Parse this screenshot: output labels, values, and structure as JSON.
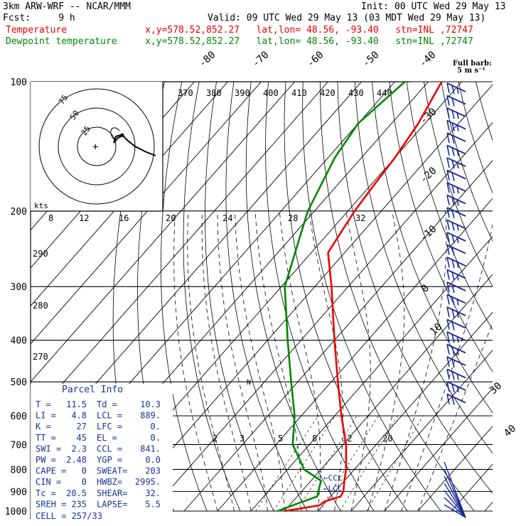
{
  "header": {
    "model": "3km ARW-WRF -- NCAR/MMM",
    "init": "Init: 00 UTC Wed 29 May 13",
    "fcst": "Fcst:     9 h",
    "valid": "Valid: 09 UTC Wed 29 May 13 (03 MDT Wed 29 May 13)",
    "temp_label": "Temperature",
    "dew_label": "Dewpoint temperature",
    "loc": "x,y=578.52,852.27   lat,lon= 48.56, -93.40   stn=INL ,72747",
    "barb_title": "Full barb:",
    "barb_unit": "5 m s⁻¹",
    "hodo_units": "kts"
  },
  "colors": {
    "temperature": "#ee0000",
    "dewpoint": "#008800",
    "parcel": "#1a3399",
    "barbs": "#1a2a99"
  },
  "chart_data": {
    "type": "line",
    "title": "",
    "y_scale": "log-pressure",
    "ylim": [
      1000,
      100
    ],
    "pressure_levels": [
      "100",
      "200",
      "300",
      "400",
      "500",
      "600",
      "700",
      "800",
      "900",
      "1000"
    ],
    "isotherm_labels": [
      "-80",
      "-70",
      "-60",
      "-50",
      "-40",
      "-30",
      "-20",
      "-10",
      "0",
      "10",
      "30",
      "40"
    ],
    "theta_e_labels": [
      "370",
      "380",
      "390",
      "400",
      "410",
      "420",
      "430",
      "440"
    ],
    "mixing_ratio_labels_upper": [
      "8",
      "12",
      "16",
      "20",
      "24",
      "28",
      "32"
    ],
    "mixing_ratio_labels_lower": [
      "2",
      "3",
      "5",
      "8",
      "12",
      "20"
    ],
    "dry_adiabat_labels": [
      "290",
      "280",
      "270"
    ],
    "series": [
      {
        "name": "Temperature",
        "points": [
          [
            1000,
            0
          ],
          [
            970,
            9
          ],
          [
            950,
            9.5
          ],
          [
            925,
            13
          ],
          [
            900,
            12.5
          ],
          [
            850,
            10
          ],
          [
            800,
            7.5
          ],
          [
            700,
            1
          ],
          [
            600,
            -8
          ],
          [
            500,
            -18
          ],
          [
            400,
            -30
          ],
          [
            300,
            -45
          ],
          [
            250,
            -55
          ],
          [
            200,
            -58
          ],
          [
            175,
            -59
          ],
          [
            150,
            -60
          ],
          [
            125,
            -62
          ],
          [
            100,
            -66
          ]
        ]
      },
      {
        "name": "Dewpoint temperature",
        "points": [
          [
            1000,
            -2
          ],
          [
            960,
            2
          ],
          [
            925,
            6
          ],
          [
            900,
            5
          ],
          [
            850,
            3
          ],
          [
            800,
            -5
          ],
          [
            700,
            -15
          ],
          [
            600,
            -22
          ],
          [
            500,
            -32
          ],
          [
            400,
            -44
          ],
          [
            300,
            -59
          ],
          [
            200,
            -72
          ],
          [
            150,
            -78
          ],
          [
            125,
            -80
          ],
          [
            100,
            -77
          ]
        ]
      }
    ],
    "parcel_labels": [
      "LFC",
      "CCL",
      "LCL"
    ],
    "hodograph_rings": [
      "25",
      "50",
      "75"
    ],
    "parcel_info": {
      "title": "Parcel Info",
      "rows": [
        [
          "T  =",
          "11.5",
          "Td =",
          "10.3"
        ],
        [
          "LI =",
          "4.8",
          "LCL =",
          "889."
        ],
        [
          "K  =",
          "27",
          "LFC =",
          "0."
        ],
        [
          "TT =",
          "45",
          "EL =",
          "0."
        ],
        [
          "SWI =",
          "2.3",
          "CCL =",
          "841."
        ],
        [
          "PW =",
          "2.48",
          "YGP =",
          "0.0"
        ],
        [
          "CAPE =",
          "0",
          "SWEAT=",
          "203"
        ],
        [
          "CIN =",
          "0",
          "HWBZ=",
          "2995."
        ],
        [
          "Tc =",
          "20.5",
          "SHEAR=",
          "32."
        ],
        [
          "SREH =",
          "235",
          "LAPSE=",
          "5.5"
        ]
      ],
      "cell": "CELL = 257/33"
    }
  }
}
